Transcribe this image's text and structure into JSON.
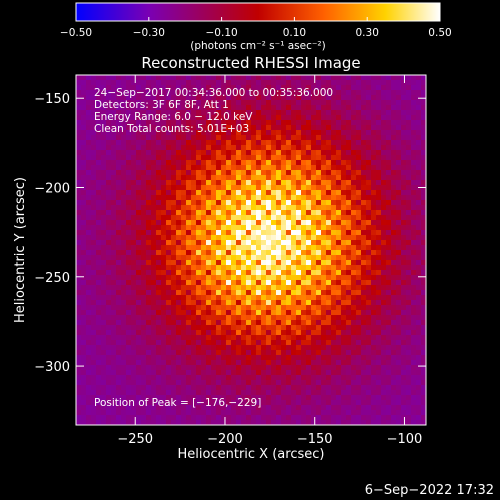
{
  "chart_data": {
    "type": "heatmap",
    "title": "Reconstructed RHESSI Image",
    "xlabel": "Heliocentric X (arcsec)",
    "ylabel": "Heliocentric Y (arcsec)",
    "xlim": [
      -283,
      -88
    ],
    "ylim": [
      -333,
      -137
    ],
    "xticks": [
      -250,
      -200,
      -150,
      -100
    ],
    "yticks": [
      -150,
      -200,
      -250,
      -300
    ],
    "xtick_labels": [
      "−250",
      "−200",
      "−150",
      "−100"
    ],
    "ytick_labels": [
      "−150",
      "−200",
      "−250",
      "−300"
    ],
    "colorbar": {
      "range": [
        -0.5,
        0.5
      ],
      "ticks": [
        -0.5,
        -0.3,
        -0.1,
        0.1,
        0.3,
        0.5
      ],
      "tick_labels": [
        "−0.50",
        "−0.30",
        "−0.10",
        "0.10",
        "0.30",
        "0.50"
      ],
      "unit_label": "(photons cm⁻² s⁻¹ asec⁻²)",
      "colors": [
        "#0000ff",
        "#7a00b4",
        "#c00000",
        "#ff6000",
        "#ffd200",
        "#ffffff"
      ]
    },
    "peak": [
      -176,
      -229
    ],
    "source_sigma_arcsec": 42,
    "ring_spacing_arcsec": 11
  },
  "annotations": {
    "time": "24−Sep−2017 00:34:36.000 to 00:35:36.000",
    "detectors": "Detectors: 3F 6F 8F, Att 1",
    "energy": "Energy Range: 6.0 − 12.0 keV",
    "clean": "Clean     Total counts: 5.01E+03",
    "peak_text": "Position of Peak = [−176,−229]"
  },
  "footer": {
    "date": "6−Sep−2022 17:32"
  }
}
